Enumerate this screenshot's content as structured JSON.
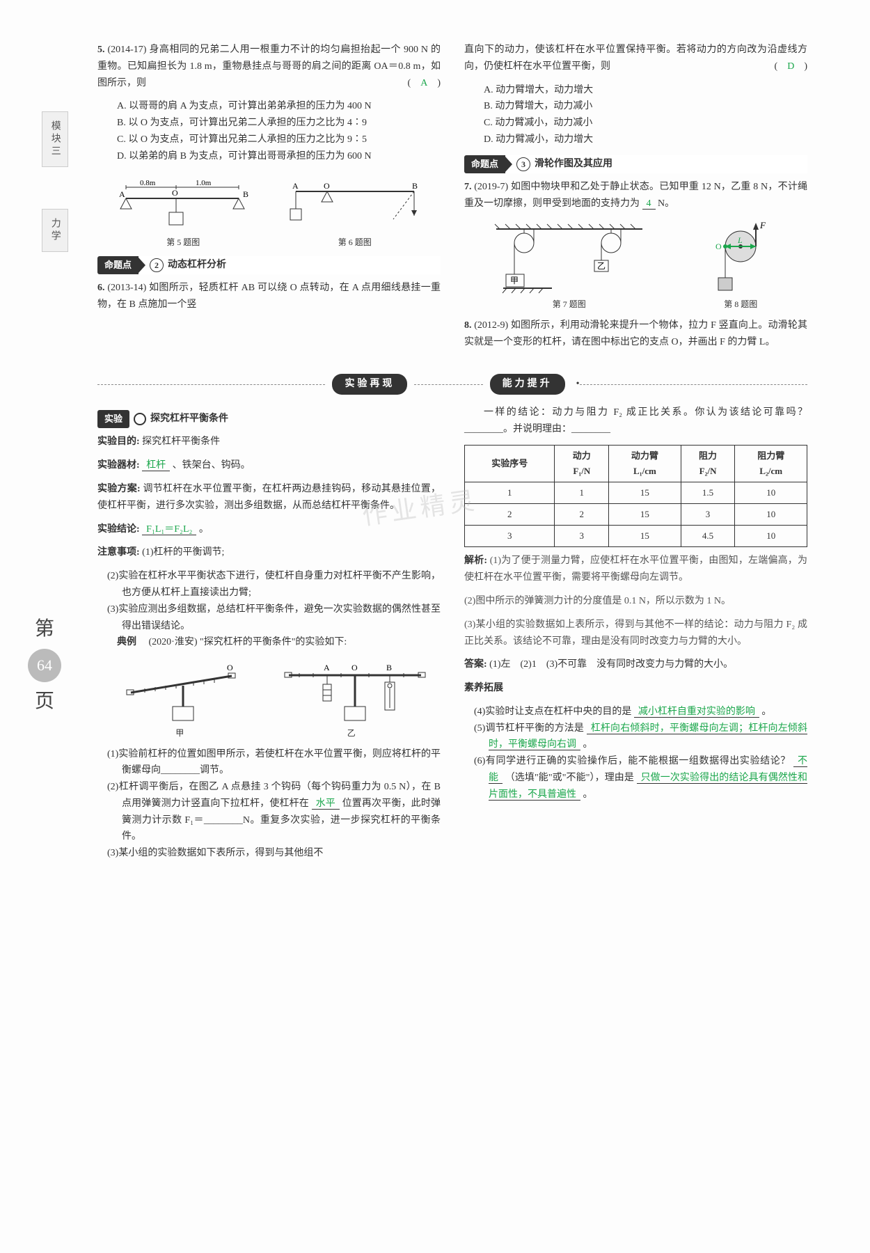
{
  "sideTab1": "模块三",
  "sideTab2": "力学",
  "pageLabel": {
    "top": "第",
    "num": "64",
    "bot": "页"
  },
  "watermark": "作业精灵",
  "left": {
    "q5": {
      "num": "5.",
      "src": "(2014-17)",
      "text": "身高相同的兄弟二人用一根重力不计的均匀扁担抬起一个 900 N 的重物。已知扁担长为 1.8 m，重物悬挂点与哥哥的肩之间的距离 OA＝0.8 m，如图所示，则",
      "paren_ans": "A",
      "opts": {
        "A": "A. 以哥哥的肩 A 为支点，可计算出弟弟承担的压力为 400 N",
        "B": "B. 以 O 为支点，可计算出兄弟二人承担的压力之比为 4∶9",
        "C": "C. 以 O 为支点，可计算出兄弟二人承担的压力之比为 9∶5",
        "D": "D. 以弟弟的肩 B 为支点，可计算出哥哥承担的压力为 600 N"
      },
      "fig5_cap": "第 5 题图",
      "fig6_cap": "第 6 题图",
      "fig5": {
        "seg1": "0.8m",
        "seg2": "1.0m",
        "A": "A",
        "O": "O",
        "B": "B"
      },
      "fig6": {
        "A": "A",
        "O": "O",
        "B": "B"
      }
    },
    "topic2": {
      "chip": "命题点",
      "num": "2",
      "title": "动态杠杆分析"
    },
    "q6": {
      "num": "6.",
      "src": "(2013-14)",
      "text": "如图所示，轻质杠杆 AB 可以绕 O 点转动，在 A 点用细线悬挂一重物，在 B 点施加一个竖"
    }
  },
  "right": {
    "q6cont": {
      "text": "直向下的动力，使该杠杆在水平位置保持平衡。若将动力的方向改为沿虚线方向，仍使杠杆在水平位置平衡，则",
      "paren_ans": "D",
      "opts": {
        "A": "A. 动力臂增大，动力增大",
        "B": "B. 动力臂增大，动力减小",
        "C": "C. 动力臂减小，动力减小",
        "D": "D. 动力臂减小，动力增大"
      }
    },
    "topic3": {
      "chip": "命题点",
      "num": "3",
      "title": "滑轮作图及其应用"
    },
    "q7": {
      "num": "7.",
      "src": "(2019-7)",
      "text1": "如图中物块甲和乙处于静止状态。已知甲重 12 N，乙重 8 N，不计绳重及一切摩擦，则甲受到地面的支持力为",
      "ans": "4",
      "text2": "N。",
      "fig7_cap": "第 7 题图",
      "fig8_cap": "第 8 题图",
      "fig7": {
        "jia": "甲",
        "yi": "乙"
      },
      "fig8": {
        "F": "F",
        "O": "O",
        "L": "L"
      }
    },
    "q8": {
      "num": "8.",
      "src": "(2012-9)",
      "text": "如图所示，利用动滑轮来提升一个物体，拉力 F 竖直向上。动滑轮其实就是一个变形的杠杆，请在图中标出它的支点 O，并画出 F 的力臂 L。"
    }
  },
  "divider": {
    "left": "实验再现",
    "right": "能力提升"
  },
  "exp": {
    "header": {
      "chip": "实验",
      "title": "探究杠杆平衡条件"
    },
    "goal_label": "实验目的:",
    "goal": "探究杠杆平衡条件",
    "equip_label": "实验器材:",
    "equip_ans": "杠杆",
    "equip_rest": "、铁架台、钩码。",
    "plan_label": "实验方案:",
    "plan": "调节杠杆在水平位置平衡，在杠杆两边悬挂钩码，移动其悬挂位置，使杠杆平衡，进行多次实验，测出多组数据，从而总结杠杆平衡条件。",
    "conc_label": "实验结论:",
    "conc_ans": "F₁L₁＝F₂L₂",
    "conc_tail": "。",
    "notes_label": "注意事项:",
    "note1": "(1)杠杆的平衡调节;",
    "note2": "(2)实验在杠杆水平平衡状态下进行，使杠杆自身重力对杠杆平衡不产生影响，也方便从杠杆上直接读出力臂;",
    "note3": "(3)实验应测出多组数据，总结杠杆平衡条件，避免一次实验数据的偶然性甚至得出错误结论。",
    "example_label": "典例",
    "example_src": "(2020·淮安)",
    "example_text": "\"探究杠杆的平衡条件\"的实验如下:",
    "fig_jia": "甲",
    "fig_yi": "乙",
    "fig_yi_labels": {
      "A": "A",
      "O": "O",
      "B": "B"
    },
    "p1": "(1)实验前杠杆的位置如图甲所示，若使杠杆在水平位置平衡，则应将杠杆的平衡螺母向________调节。",
    "p2_a": "(2)杠杆调平衡后，在图乙 A 点悬挂 3 个钩码（每个钩码重力为 0.5 N），在 B 点用弹簧测力计竖直向下拉杠杆，使杠杆在",
    "p2_ans": "水平",
    "p2_b": "位置再次平衡，此时弹簧测力计示数 F₁＝________N。重复多次实验，进一步探究杠杆的平衡条件。",
    "p3": "(3)某小组的实验数据如下表所示，得到与其他组不"
  },
  "rightExp": {
    "intro": "一样的结论：动力与阻力 F₂ 成正比关系。你认为该结论可靠吗？________。并说明理由：________",
    "table": {
      "headers": [
        "实验序号",
        "动力\nF₁/N",
        "动力臂\nL₁/cm",
        "阻力\nF₂/N",
        "阻力臂\nL₂/cm"
      ],
      "rows": [
        [
          "1",
          "1",
          "15",
          "1.5",
          "10"
        ],
        [
          "2",
          "2",
          "15",
          "3",
          "10"
        ],
        [
          "3",
          "3",
          "15",
          "4.5",
          "10"
        ]
      ]
    },
    "analysis_label": "解析:",
    "a1": "(1)为了便于测量力臂，应使杠杆在水平位置平衡，由图知，左端偏高，为使杠杆在水平位置平衡，需要将平衡螺母向左调节。",
    "a2": "(2)图中所示的弹簧测力计的分度值是 0.1 N，所以示数为 1 N。",
    "a3": "(3)某小组的实验数据如上表所示，得到与其他不一样的结论：动力与阻力 F₂ 成正比关系。该结论不可靠，理由是没有同时改变力与力臂的大小。",
    "ans_label": "答案:",
    "ans": "(1)左　(2)1　(3)不可靠　没有同时改变力与力臂的大小。",
    "ext_label": "素养拓展",
    "p4_a": "(4)实验时让支点在杠杆中央的目的是",
    "p4_ans": "减小杠杆自重对实验的影响",
    "p4_b": "。",
    "p5_a": "(5)调节杠杆平衡的方法是",
    "p5_ans": "杠杆向右倾斜时，平衡螺母向左调；杠杆向左倾斜时，平衡螺母向右调",
    "p5_b": "。",
    "p6_a": "(6)有同学进行正确的实验操作后，能不能根据一组数据得出实验结论？",
    "p6_ans1": "不能",
    "p6_b": "（选填\"能\"或\"不能\"），理由是",
    "p6_ans2": "只做一次实验得出的结论具有偶然性和片面性，不具普遍性",
    "p6_c": "。"
  }
}
